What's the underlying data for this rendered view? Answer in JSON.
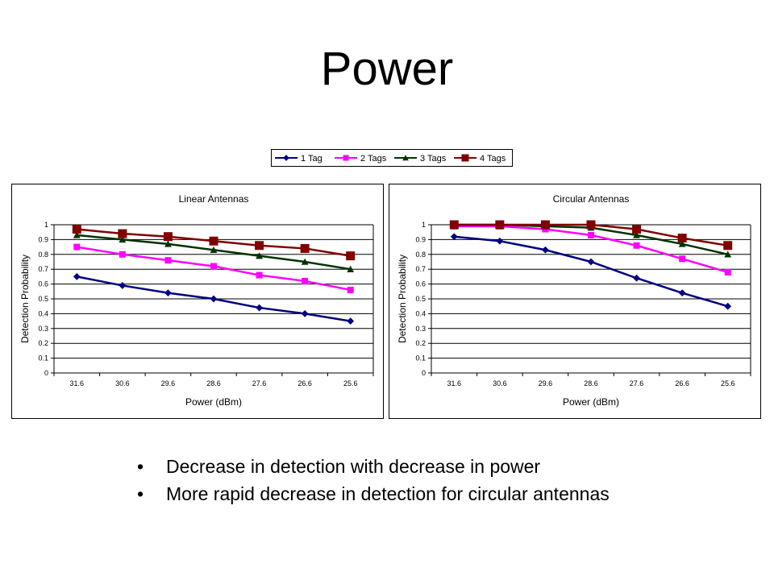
{
  "slide": {
    "title": "Power",
    "bullets": [
      "Decrease in detection with decrease in power",
      "More rapid decrease in detection for circular antennas"
    ],
    "bullet_symbol": "•"
  },
  "legend": [
    {
      "name": "1 Tag",
      "color": "#000080",
      "marker": "diamond"
    },
    {
      "name": "2 Tags",
      "color": "#FF00FF",
      "marker": "square"
    },
    {
      "name": "3 Tags",
      "color": "#003300",
      "marker": "triangle"
    },
    {
      "name": "4 Tags",
      "color": "#800000",
      "marker": "square"
    }
  ],
  "chart_data": [
    {
      "type": "line",
      "title": "Linear Antennas",
      "xlabel": "Power (dBm)",
      "ylabel": "Detection Probability",
      "categories": [
        "31.6",
        "30.6",
        "29.6",
        "28.6",
        "27.6",
        "26.6",
        "25.6"
      ],
      "ylim": [
        0,
        1
      ],
      "yticks": [
        "0",
        "0.1",
        "0.2",
        "0.3",
        "0.4",
        "0.5",
        "0.6",
        "0.7",
        "0.8",
        "0.9",
        "1"
      ],
      "grid": true,
      "series": [
        {
          "name": "1 Tag",
          "values": [
            0.65,
            0.59,
            0.54,
            0.5,
            0.44,
            0.4,
            0.35
          ]
        },
        {
          "name": "2 Tags",
          "values": [
            0.85,
            0.8,
            0.76,
            0.72,
            0.66,
            0.62,
            0.56
          ]
        },
        {
          "name": "3 Tags",
          "values": [
            0.93,
            0.9,
            0.87,
            0.83,
            0.79,
            0.75,
            0.7
          ]
        },
        {
          "name": "4 Tags",
          "values": [
            0.97,
            0.94,
            0.92,
            0.89,
            0.86,
            0.84,
            0.79
          ]
        }
      ]
    },
    {
      "type": "line",
      "title": "Circular Antennas",
      "xlabel": "Power (dBm)",
      "ylabel": "Detection Probability",
      "categories": [
        "31.6",
        "30.6",
        "29.6",
        "28.6",
        "27.6",
        "26.6",
        "25.6"
      ],
      "ylim": [
        0,
        1
      ],
      "yticks": [
        "0",
        "0.1",
        "0.2",
        "0.3",
        "0.4",
        "0.5",
        "0.6",
        "0.7",
        "0.8",
        "0.9",
        "1"
      ],
      "grid": true,
      "series": [
        {
          "name": "1 Tag",
          "values": [
            0.92,
            0.89,
            0.83,
            0.75,
            0.64,
            0.54,
            0.45
          ]
        },
        {
          "name": "2 Tags",
          "values": [
            0.99,
            0.99,
            0.97,
            0.93,
            0.86,
            0.77,
            0.68
          ]
        },
        {
          "name": "3 Tags",
          "values": [
            1.0,
            1.0,
            0.99,
            0.98,
            0.93,
            0.87,
            0.8
          ]
        },
        {
          "name": "4 Tags",
          "values": [
            1.0,
            1.0,
            1.0,
            1.0,
            0.97,
            0.91,
            0.86
          ]
        }
      ]
    }
  ]
}
